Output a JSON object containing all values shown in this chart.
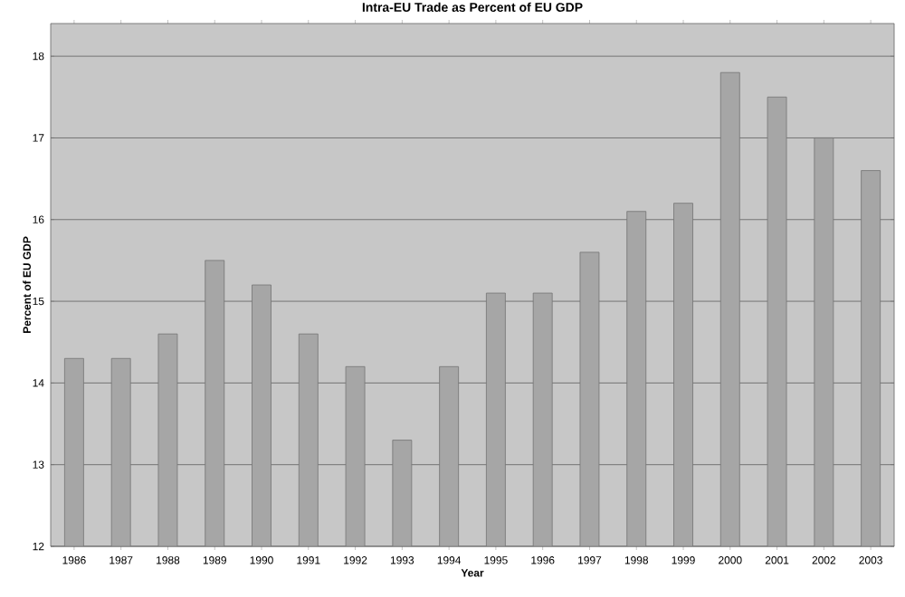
{
  "chart_data": {
    "type": "bar",
    "title": "Intra-EU Trade as Percent of EU GDP",
    "xlabel": "Year",
    "ylabel": "Percent of EU GDP",
    "categories": [
      "1986",
      "1987",
      "1988",
      "1989",
      "1990",
      "1991",
      "1992",
      "1993",
      "1994",
      "1995",
      "1996",
      "1997",
      "1998",
      "1999",
      "2000",
      "2001",
      "2002",
      "2003"
    ],
    "values": [
      14.3,
      14.3,
      14.6,
      15.5,
      15.2,
      14.6,
      14.2,
      13.3,
      14.2,
      15.1,
      15.1,
      15.6,
      16.1,
      16.2,
      17.8,
      17.5,
      17.0,
      16.6
    ],
    "color": "#a6a6a6",
    "ylim": [
      12,
      18.4
    ],
    "yticks": [
      12,
      13,
      14,
      15,
      16,
      17,
      18
    ],
    "grid": "y"
  }
}
